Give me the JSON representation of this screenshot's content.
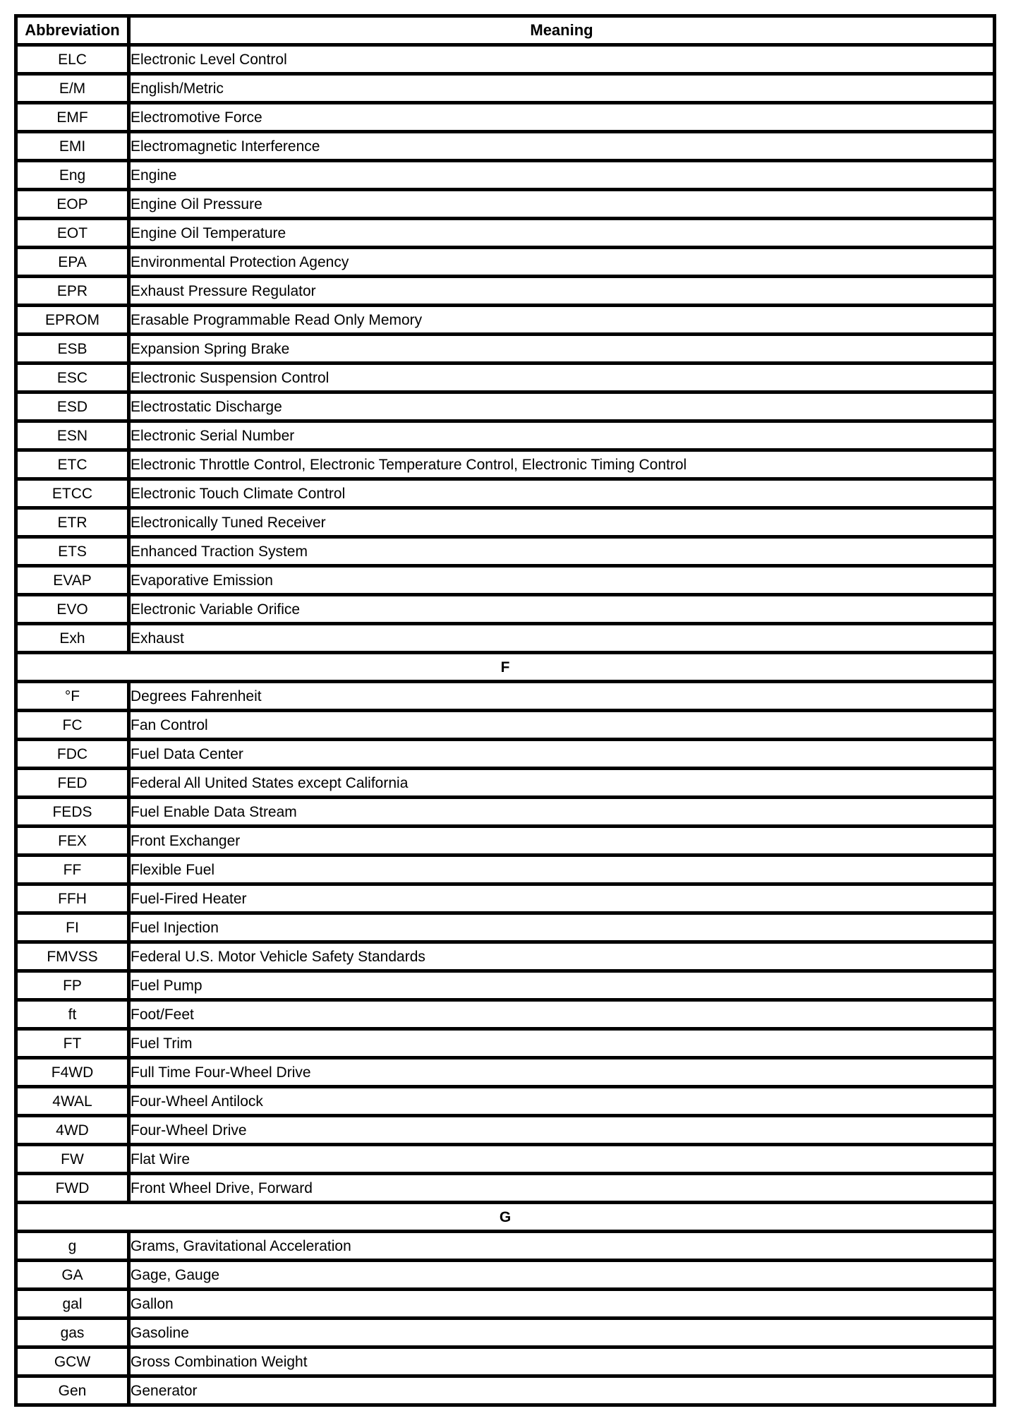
{
  "page": {
    "background_color": "#ffffff",
    "line_color": "#000000"
  },
  "table": {
    "columns": [
      {
        "label": "Abbreviation"
      },
      {
        "label": "Meaning"
      }
    ],
    "rows": [
      {
        "type": "entry",
        "abbr": "ELC",
        "meaning": "Electronic Level Control"
      },
      {
        "type": "entry",
        "abbr": "E/M",
        "meaning": "English/Metric"
      },
      {
        "type": "entry",
        "abbr": "EMF",
        "meaning": "Electromotive Force"
      },
      {
        "type": "entry",
        "abbr": "EMI",
        "meaning": "Electromagnetic Interference"
      },
      {
        "type": "entry",
        "abbr": "Eng",
        "meaning": "Engine"
      },
      {
        "type": "entry",
        "abbr": "EOP",
        "meaning": "Engine Oil Pressure"
      },
      {
        "type": "entry",
        "abbr": "EOT",
        "meaning": "Engine Oil Temperature"
      },
      {
        "type": "entry",
        "abbr": "EPA",
        "meaning": "Environmental Protection Agency"
      },
      {
        "type": "entry",
        "abbr": "EPR",
        "meaning": "Exhaust Pressure Regulator"
      },
      {
        "type": "entry",
        "abbr": "EPROM",
        "meaning": "Erasable Programmable Read Only Memory"
      },
      {
        "type": "entry",
        "abbr": "ESB",
        "meaning": "Expansion Spring Brake"
      },
      {
        "type": "entry",
        "abbr": "ESC",
        "meaning": "Electronic Suspension Control"
      },
      {
        "type": "entry",
        "abbr": "ESD",
        "meaning": "Electrostatic Discharge"
      },
      {
        "type": "entry",
        "abbr": "ESN",
        "meaning": "Electronic Serial Number"
      },
      {
        "type": "entry",
        "abbr": "ETC",
        "meaning": "Electronic Throttle Control, Electronic Temperature Control, Electronic Timing Control"
      },
      {
        "type": "entry",
        "abbr": "ETCC",
        "meaning": "Electronic Touch Climate Control"
      },
      {
        "type": "entry",
        "abbr": "ETR",
        "meaning": "Electronically Tuned Receiver"
      },
      {
        "type": "entry",
        "abbr": "ETS",
        "meaning": "Enhanced Traction System"
      },
      {
        "type": "entry",
        "abbr": "EVAP",
        "meaning": "Evaporative Emission"
      },
      {
        "type": "entry",
        "abbr": "EVO",
        "meaning": "Electronic Variable Orifice"
      },
      {
        "type": "entry",
        "abbr": "Exh",
        "meaning": "Exhaust"
      },
      {
        "type": "section",
        "label": "F"
      },
      {
        "type": "entry",
        "abbr": "°F",
        "meaning": "Degrees Fahrenheit"
      },
      {
        "type": "entry",
        "abbr": "FC",
        "meaning": "Fan Control"
      },
      {
        "type": "entry",
        "abbr": "FDC",
        "meaning": "Fuel Data Center"
      },
      {
        "type": "entry",
        "abbr": "FED",
        "meaning": "Federal All United States except California"
      },
      {
        "type": "entry",
        "abbr": "FEDS",
        "meaning": "Fuel Enable Data Stream"
      },
      {
        "type": "entry",
        "abbr": "FEX",
        "meaning": "Front Exchanger"
      },
      {
        "type": "entry",
        "abbr": "FF",
        "meaning": "Flexible Fuel"
      },
      {
        "type": "entry",
        "abbr": "FFH",
        "meaning": "Fuel-Fired Heater"
      },
      {
        "type": "entry",
        "abbr": "FI",
        "meaning": "Fuel Injection"
      },
      {
        "type": "entry",
        "abbr": "FMVSS",
        "meaning": "Federal U.S. Motor Vehicle Safety Standards"
      },
      {
        "type": "entry",
        "abbr": "FP",
        "meaning": "Fuel Pump"
      },
      {
        "type": "entry",
        "abbr": "ft",
        "meaning": "Foot/Feet"
      },
      {
        "type": "entry",
        "abbr": "FT",
        "meaning": "Fuel Trim"
      },
      {
        "type": "entry",
        "abbr": "F4WD",
        "meaning": "Full Time Four-Wheel Drive"
      },
      {
        "type": "entry",
        "abbr": "4WAL",
        "meaning": "Four-Wheel Antilock"
      },
      {
        "type": "entry",
        "abbr": "4WD",
        "meaning": "Four-Wheel Drive"
      },
      {
        "type": "entry",
        "abbr": "FW",
        "meaning": "Flat Wire"
      },
      {
        "type": "entry",
        "abbr": "FWD",
        "meaning": "Front Wheel Drive, Forward"
      },
      {
        "type": "section",
        "label": "G"
      },
      {
        "type": "entry",
        "abbr": "g",
        "meaning": "Grams, Gravitational Acceleration"
      },
      {
        "type": "entry",
        "abbr": "GA",
        "meaning": "Gage, Gauge"
      },
      {
        "type": "entry",
        "abbr": "gal",
        "meaning": "Gallon"
      },
      {
        "type": "entry",
        "abbr": "gas",
        "meaning": "Gasoline"
      },
      {
        "type": "entry",
        "abbr": "GCW",
        "meaning": "Gross Combination Weight"
      },
      {
        "type": "entry",
        "abbr": "Gen",
        "meaning": "Generator"
      }
    ]
  }
}
